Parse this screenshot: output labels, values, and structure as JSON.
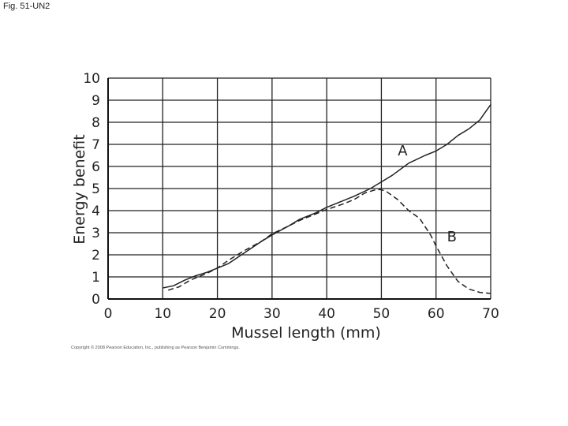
{
  "figure_label": "Fig. 51-UN2",
  "copyright": "Copyright © 2008 Pearson Education, Inc., publishing as Pearson Benjamin Cummings.",
  "chart_data": {
    "type": "line",
    "title": "",
    "xlabel": "Mussel length (mm)",
    "ylabel": "Energy benefit",
    "xlim": [
      0,
      70
    ],
    "ylim": [
      0,
      10
    ],
    "xticks": [
      0,
      10,
      20,
      30,
      40,
      50,
      60,
      70
    ],
    "yticks": [
      0,
      1,
      2,
      3,
      4,
      5,
      6,
      7,
      8,
      9,
      10
    ],
    "grid": true,
    "series": [
      {
        "name": "A",
        "style": "solid",
        "color": "#222222",
        "x": [
          10,
          12,
          14,
          16,
          18,
          20,
          22,
          25,
          28,
          30,
          33,
          35,
          38,
          40,
          43,
          45,
          48,
          50,
          52,
          55,
          58,
          60,
          62,
          64,
          66,
          68,
          70
        ],
        "y": [
          0.5,
          0.6,
          0.85,
          1.05,
          1.2,
          1.4,
          1.6,
          2.1,
          2.6,
          2.9,
          3.3,
          3.6,
          3.9,
          4.15,
          4.45,
          4.65,
          5.0,
          5.3,
          5.6,
          6.15,
          6.5,
          6.7,
          7.0,
          7.4,
          7.7,
          8.1,
          8.8
        ]
      },
      {
        "name": "B",
        "style": "dashed",
        "color": "#222222",
        "x": [
          11,
          13,
          15,
          18,
          20,
          22,
          25,
          28,
          30,
          33,
          35,
          38,
          40,
          43,
          45,
          47,
          49,
          50,
          51,
          53,
          55,
          57,
          59,
          60,
          62,
          64,
          66,
          68,
          70
        ],
        "y": [
          0.4,
          0.55,
          0.85,
          1.15,
          1.4,
          1.75,
          2.2,
          2.6,
          2.95,
          3.3,
          3.55,
          3.85,
          4.05,
          4.3,
          4.5,
          4.8,
          4.95,
          4.95,
          4.85,
          4.5,
          4.0,
          3.65,
          2.9,
          2.4,
          1.5,
          0.8,
          0.45,
          0.3,
          0.25
        ]
      }
    ],
    "annotations": [
      {
        "text": "A",
        "x": 53,
        "y": 6.5
      },
      {
        "text": "B",
        "x": 62,
        "y": 2.6
      }
    ]
  }
}
